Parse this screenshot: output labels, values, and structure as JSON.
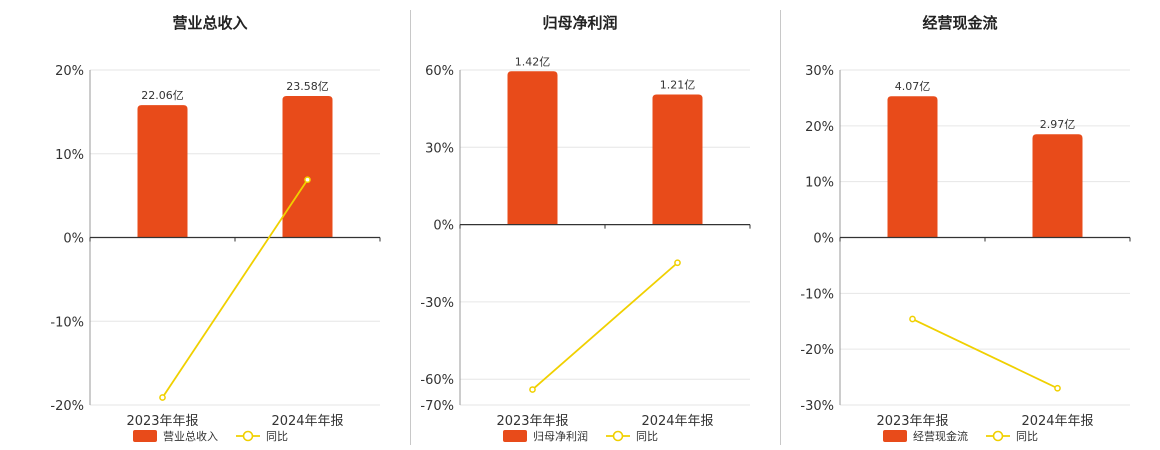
{
  "colors": {
    "bar": "#e84b1a",
    "line": "#f0d000",
    "grid": "#e6e6e6",
    "axis": "#333333"
  },
  "chart_data": [
    {
      "type": "bar",
      "title": "营业总收入",
      "categories": [
        "2023年年报",
        "2024年年报"
      ],
      "series": [
        {
          "name": "营业总收入",
          "type": "bar",
          "values": [
            15.8,
            16.9
          ],
          "labels": [
            "22.06亿",
            "23.58亿"
          ]
        },
        {
          "name": "同比",
          "type": "line",
          "values": [
            -19.1,
            6.9
          ]
        }
      ],
      "yticks": [
        20,
        10,
        0,
        -10,
        -20
      ],
      "ytick_labels": [
        "20%",
        "10%",
        "0%",
        "-10%",
        "-20%"
      ],
      "ylim": [
        -20,
        20
      ]
    },
    {
      "type": "bar",
      "title": "归母净利润",
      "categories": [
        "2023年年报",
        "2024年年报"
      ],
      "series": [
        {
          "name": "归母净利润",
          "type": "bar",
          "values": [
            59.5,
            50.5
          ],
          "labels": [
            "1.42亿",
            "1.21亿"
          ]
        },
        {
          "name": "同比",
          "type": "line",
          "values": [
            -64.0,
            -14.8
          ]
        }
      ],
      "yticks": [
        60,
        30,
        0,
        -30,
        -60,
        -70
      ],
      "ytick_labels": [
        "60%",
        "30%",
        "0%",
        "-30%",
        "-60%",
        "-70%"
      ],
      "ylim": [
        -70,
        60
      ]
    },
    {
      "type": "bar",
      "title": "经营现金流",
      "categories": [
        "2023年年报",
        "2024年年报"
      ],
      "series": [
        {
          "name": "经营现金流",
          "type": "bar",
          "values": [
            25.3,
            18.5
          ],
          "labels": [
            "4.07亿",
            "2.97亿"
          ]
        },
        {
          "name": "同比",
          "type": "line",
          "values": [
            -14.6,
            -27.0
          ]
        }
      ],
      "yticks": [
        30,
        20,
        10,
        0,
        -10,
        -20,
        -30
      ],
      "ytick_labels": [
        "30%",
        "20%",
        "10%",
        "0%",
        "-10%",
        "-20%",
        "-30%"
      ],
      "ylim": [
        -30,
        30
      ]
    }
  ]
}
